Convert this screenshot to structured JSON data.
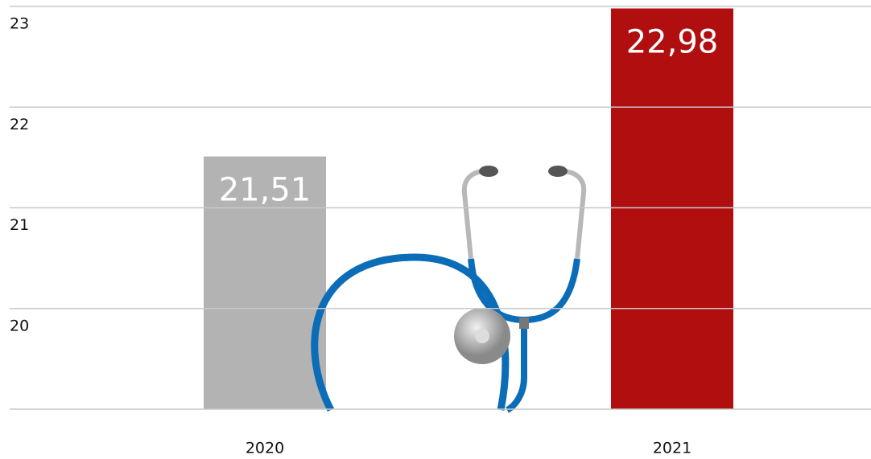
{
  "chart_data": {
    "type": "bar",
    "categories": [
      "2020",
      "2021"
    ],
    "values": [
      21.51,
      22.98
    ],
    "value_labels": [
      "21,51",
      "22,98"
    ],
    "colors": [
      "#b3b3b3",
      "#b10f0f"
    ],
    "ylim": [
      19,
      23
    ],
    "yticks": [
      20,
      21,
      22,
      23
    ],
    "grid": true
  }
}
